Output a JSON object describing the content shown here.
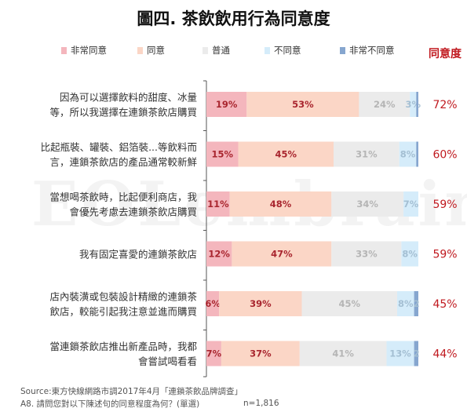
{
  "title": "圖四. 茶飲飲用行為同意度",
  "legend": [
    {
      "label": "非常同意",
      "color": "#f4b6bd"
    },
    {
      "label": "同意",
      "color": "#fbd6c6"
    },
    {
      "label": "普通",
      "color": "#ebebeb"
    },
    {
      "label": "不同意",
      "color": "#d5ecfa"
    },
    {
      "label": "非常不同意",
      "color": "#86a6cf"
    }
  ],
  "agree_header": "同意度",
  "watermark": "EOLembrain",
  "chart_data": {
    "type": "bar",
    "orientation": "horizontal",
    "stacked": true,
    "categories": [
      [
        "因為可以選擇飲料的甜度、冰量",
        "等，所以我選擇在連鎖茶飲店購買"
      ],
      [
        "比起瓶裝、罐裝、鋁箔裝...等飲料而",
        "言，連鎖茶飲店的產品通常較新鮮"
      ],
      [
        "當想喝茶飲時，比起便利商店，我",
        "會優先考慮去連鎖茶飲店購買"
      ],
      [
        "我有固定喜愛的連鎖茶飲店"
      ],
      [
        "店內裝潢或包裝設計精緻的連鎖茶",
        "飲店，較能引起我注意並進而購買"
      ],
      [
        "當連鎖茶飲店推出新產品時，我都",
        "會嘗試喝看看"
      ]
    ],
    "series": [
      {
        "name": "非常同意",
        "color": "#f4b6bd",
        "label_color": "#a9262f",
        "values": [
          19,
          15,
          11,
          12,
          6,
          7
        ],
        "labels": [
          "19%",
          "15%",
          "11%",
          "12%",
          "6%",
          "7%"
        ]
      },
      {
        "name": "同意",
        "color": "#fbd6c6",
        "label_color": "#a9262f",
        "values": [
          53,
          45,
          48,
          47,
          39,
          37
        ],
        "labels": [
          "53%",
          "45%",
          "48%",
          "47%",
          "39%",
          "37%"
        ]
      },
      {
        "name": "普通",
        "color": "#ebebeb",
        "label_color": "#b5b5b5",
        "values": [
          24,
          31,
          34,
          33,
          45,
          41
        ],
        "labels": [
          "24%",
          "31%",
          "34%",
          "33%",
          "45%",
          "41%"
        ]
      },
      {
        "name": "不同意",
        "color": "#d5ecfa",
        "label_color": "#a4bfd3",
        "values": [
          3,
          8,
          7,
          8,
          8,
          13
        ],
        "labels": [
          "3%",
          "8%",
          "7%",
          "8%",
          "8%",
          "13%"
        ]
      },
      {
        "name": "非常不同意",
        "color": "#86a6cf",
        "label_color": "#a4bfd3",
        "values": [
          1,
          1,
          0,
          0,
          2,
          2
        ],
        "labels": [
          "",
          "",
          "",
          "",
          "2",
          "2"
        ]
      }
    ],
    "agree_totals": [
      "72%",
      "60%",
      "59%",
      "59%",
      "45%",
      "44%"
    ],
    "xlim": [
      0,
      100
    ]
  },
  "source": "Source:東方快線網路市調2017年4月「連鎖茶飲品牌調查」",
  "note": "A8. 請問您對以下陳述句的同意程度為何？(單選)",
  "n_count": "n=1,816"
}
